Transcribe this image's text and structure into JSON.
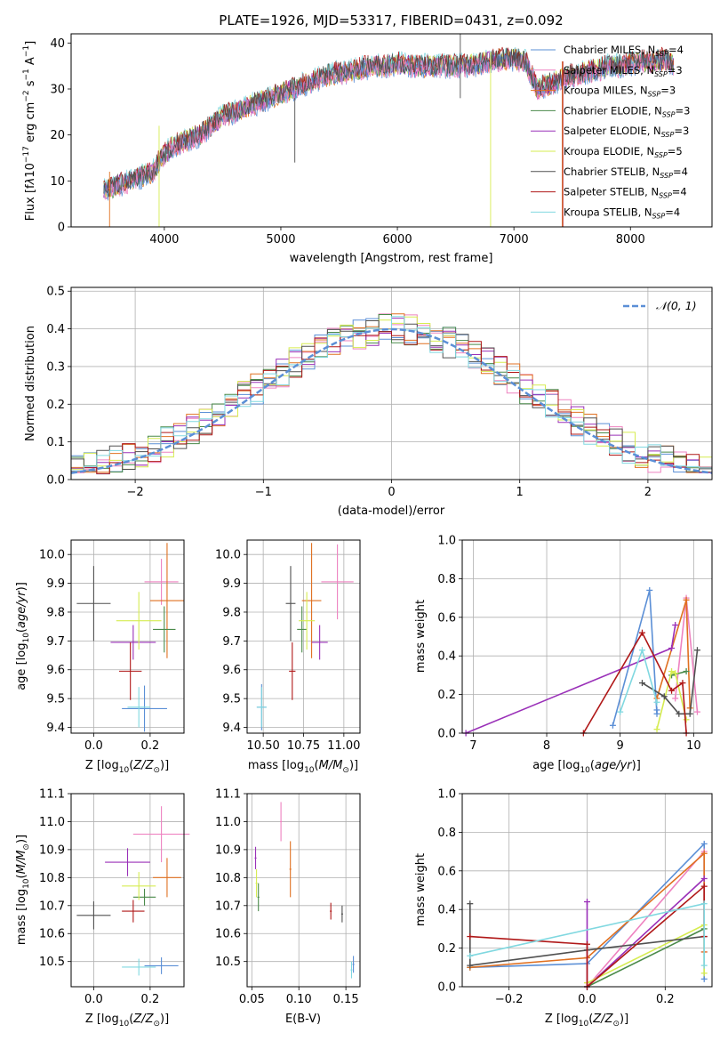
{
  "title": "PLATE=1926, MJD=53317, FIBERID=0431, z=0.092",
  "legend_models": [
    {
      "name": "Chabrier MILES, N_SSP=4",
      "label": "Chabrier MILES, N",
      "sub": "SSP",
      "suffix": "=4",
      "color": "#5b8fd6"
    },
    {
      "name": "Salpeter MILES, N_SSP=3",
      "label": "Salpeter MILES, N",
      "sub": "SSP",
      "suffix": "=3",
      "color": "#ee82c0"
    },
    {
      "name": "Kroupa MILES, N_SSP=3",
      "label": "Kroupa MILES, N",
      "sub": "SSP",
      "suffix": "=3",
      "color": "#e07020"
    },
    {
      "name": "Chabrier ELODIE, N_SSP=3",
      "label": "Chabrier ELODIE, N",
      "sub": "SSP",
      "suffix": "=3",
      "color": "#4a8a4a"
    },
    {
      "name": "Salpeter ELODIE, N_SSP=3",
      "label": "Salpeter ELODIE, N",
      "sub": "SSP",
      "suffix": "=3",
      "color": "#9a30b8"
    },
    {
      "name": "Kroupa ELODIE, N_SSP=5",
      "label": "Kroupa ELODIE, N",
      "sub": "SSP",
      "suffix": "=5",
      "color": "#d6ec50"
    },
    {
      "name": "Chabrier STELIB, N_SSP=4",
      "label": "Chabrier STELIB, N",
      "sub": "SSP",
      "suffix": "=4",
      "color": "#505050"
    },
    {
      "name": "Salpeter STELIB, N_SSP=4",
      "label": "Salpeter STELIB, N",
      "sub": "SSP",
      "suffix": "=4",
      "color": "#b01818"
    },
    {
      "name": "Kroupa STELIB, N_SSP=4",
      "label": "Kroupa STELIB, N",
      "sub": "SSP",
      "suffix": "=4",
      "color": "#80d8e0"
    }
  ],
  "chart_data": [
    {
      "id": "spectrum",
      "type": "line",
      "xlabel": "wavelength [Angstrom, rest frame]",
      "ylabel": "Flux [f_λ 10^-17 erg cm^-2 s^-1 A^-1]",
      "xlim": [
        3200,
        8700
      ],
      "ylim": [
        0,
        42
      ],
      "xticks": [
        4000,
        5000,
        6000,
        7000,
        8000
      ],
      "yticks": [
        0,
        10,
        20,
        30,
        40
      ],
      "grid": false,
      "legend_position": "right",
      "continuum": {
        "x": [
          3480,
          3600,
          3700,
          3800,
          3900,
          4000,
          4100,
          4200,
          4300,
          4400,
          4500,
          4600,
          4700,
          4800,
          4900,
          5000,
          5100,
          5200,
          5300,
          5400,
          5500,
          5600,
          5700,
          5800,
          5900,
          6000,
          6100,
          6200,
          6300,
          6400,
          6500,
          6600,
          6700,
          6800,
          6900,
          7000,
          7100,
          7200,
          7300,
          7400,
          7500,
          7600,
          7700,
          7800,
          7900,
          8000,
          8100,
          8200,
          8300,
          8370
        ],
        "y": [
          8,
          9,
          10,
          11,
          12,
          16,
          18,
          19,
          20,
          22,
          24,
          25,
          26,
          27,
          28,
          29,
          30,
          31,
          32,
          33,
          33.5,
          34,
          34.5,
          35,
          35,
          35.5,
          35.2,
          35,
          35,
          35,
          35,
          35.2,
          35.5,
          36,
          36.5,
          36.5,
          36,
          30,
          31,
          32,
          33,
          33.5,
          34,
          35,
          35,
          35.5,
          36,
          36,
          36.5,
          35.5
        ]
      }
    },
    {
      "id": "residual-histogram",
      "type": "histogram",
      "xlabel": "(data-model)/error",
      "ylabel": "Normed distribution",
      "xlim": [
        -2.5,
        2.5
      ],
      "ylim": [
        0,
        0.51
      ],
      "xticks": [
        -2,
        -1,
        0,
        1,
        2
      ],
      "yticks": [
        0.0,
        0.1,
        0.2,
        0.3,
        0.4,
        0.5
      ],
      "grid": true,
      "legend_position": "upper right",
      "reference": {
        "name": "𝒩(0, 1)",
        "mean": 0,
        "sigma": 1
      }
    },
    {
      "id": "age-vs-Z",
      "type": "scatter",
      "xlabel": "Z [log10(Z/Z⊙)]",
      "ylabel": "age [log10(age/yr)]",
      "xlim": [
        -0.08,
        0.32
      ],
      "ylim": [
        9.38,
        10.05
      ],
      "xticks": [
        0.0,
        0.2
      ],
      "yticks": [
        9.4,
        9.5,
        9.6,
        9.7,
        9.8,
        9.9,
        10.0
      ],
      "grid": true,
      "points": [
        {
          "model": 0,
          "x": 0.18,
          "y": 9.465,
          "xerr": 0.08,
          "yerr": 0.08
        },
        {
          "model": 1,
          "x": 0.24,
          "y": 9.905,
          "xerr": 0.06,
          "yerr": 0.08
        },
        {
          "model": 2,
          "x": 0.26,
          "y": 9.84,
          "xerr": 0.06,
          "yerr": 0.2
        },
        {
          "model": 3,
          "x": 0.25,
          "y": 9.74,
          "xerr": 0.04,
          "yerr": 0.08
        },
        {
          "model": 4,
          "x": 0.14,
          "y": 9.695,
          "xerr": 0.08,
          "yerr": 0.06
        },
        {
          "model": 5,
          "x": 0.16,
          "y": 9.77,
          "xerr": 0.08,
          "yerr": 0.1
        },
        {
          "model": 6,
          "x": 0.0,
          "y": 9.83,
          "xerr": 0.06,
          "yerr": 0.13
        },
        {
          "model": 7,
          "x": 0.13,
          "y": 9.595,
          "xerr": 0.04,
          "yerr": 0.1
        },
        {
          "model": 8,
          "x": 0.16,
          "y": 9.47,
          "xerr": 0.04,
          "yerr": 0.07
        }
      ]
    },
    {
      "id": "age-vs-mass",
      "type": "scatter",
      "xlabel": "mass [log10(M/M⊙)]",
      "ylabel": "",
      "xlim": [
        10.4,
        11.1
      ],
      "ylim": [
        9.38,
        10.05
      ],
      "xticks": [
        10.5,
        10.75,
        11.0
      ],
      "yticks": [
        9.4,
        9.5,
        9.6,
        9.7,
        9.8,
        9.9,
        10.0
      ],
      "grid": true,
      "points": [
        {
          "model": 0,
          "x": 10.49,
          "y": 9.47,
          "xerr": 0.03,
          "yerr": 0.08
        },
        {
          "model": 1,
          "x": 10.96,
          "y": 9.905,
          "xerr": 0.1,
          "yerr": 0.13
        },
        {
          "model": 2,
          "x": 10.8,
          "y": 9.84,
          "xerr": 0.06,
          "yerr": 0.2
        },
        {
          "model": 3,
          "x": 10.74,
          "y": 9.74,
          "xerr": 0.03,
          "yerr": 0.08
        },
        {
          "model": 4,
          "x": 10.85,
          "y": 9.695,
          "xerr": 0.05,
          "yerr": 0.06
        },
        {
          "model": 5,
          "x": 10.77,
          "y": 9.77,
          "xerr": 0.05,
          "yerr": 0.1
        },
        {
          "model": 6,
          "x": 10.67,
          "y": 9.83,
          "xerr": 0.03,
          "yerr": 0.13
        },
        {
          "model": 7,
          "x": 10.68,
          "y": 9.595,
          "xerr": 0.02,
          "yerr": 0.1
        },
        {
          "model": 8,
          "x": 10.49,
          "y": 9.47,
          "xerr": 0.03,
          "yerr": 0.07
        }
      ]
    },
    {
      "id": "weight-vs-age",
      "type": "line",
      "xlabel": "age [log10(age/yr)]",
      "ylabel": "mass weight",
      "xlim": [
        6.85,
        10.25
      ],
      "ylim": [
        0,
        1
      ],
      "xticks": [
        7,
        8,
        9,
        10
      ],
      "yticks": [
        0.0,
        0.2,
        0.4,
        0.6,
        0.8,
        1.0
      ],
      "grid": true,
      "series": [
        {
          "model": 0,
          "x": [
            8.9,
            9.4,
            9.5,
            9.5
          ],
          "y": [
            0.04,
            0.74,
            0.1,
            0.12
          ]
        },
        {
          "model": 1,
          "x": [
            9.75,
            9.9,
            10.05
          ],
          "y": [
            0.18,
            0.7,
            0.11
          ]
        },
        {
          "model": 2,
          "x": [
            9.5,
            9.9,
            9.95
          ],
          "y": [
            0.18,
            0.69,
            0.13
          ]
        },
        {
          "model": 3,
          "x": [
            9.7,
            9.9
          ],
          "y": [
            0.3,
            0.32
          ]
        },
        {
          "model": 4,
          "x": [
            6.9,
            9.7,
            9.75
          ],
          "y": [
            0.0,
            0.44,
            0.56
          ]
        },
        {
          "model": 5,
          "x": [
            9.5,
            9.7,
            9.75,
            9.9
          ],
          "y": [
            0.02,
            0.32,
            0.31,
            0.07
          ]
        },
        {
          "model": 6,
          "x": [
            9.3,
            9.6,
            9.8,
            9.95,
            10.05
          ],
          "y": [
            0.26,
            0.19,
            0.1,
            0.1,
            0.43
          ]
        },
        {
          "model": 7,
          "x": [
            8.5,
            9.3,
            9.7,
            9.85,
            9.9
          ],
          "y": [
            0.0,
            0.52,
            0.22,
            0.26,
            0.0
          ]
        },
        {
          "model": 8,
          "x": [
            9.0,
            9.3,
            9.5
          ],
          "y": [
            0.11,
            0.43,
            0.16
          ]
        }
      ]
    },
    {
      "id": "mass-vs-Z",
      "type": "scatter",
      "xlabel": "Z [log10(Z/Z⊙)]",
      "ylabel": "mass [log10(M/M⊙)]",
      "xlim": [
        -0.08,
        0.32
      ],
      "ylim": [
        10.41,
        11.1
      ],
      "xticks": [
        0.0,
        0.2
      ],
      "yticks": [
        10.5,
        10.6,
        10.7,
        10.8,
        10.9,
        11.0,
        11.1
      ],
      "grid": true,
      "points": [
        {
          "model": 0,
          "x": 0.24,
          "y": 10.485,
          "xerr": 0.06,
          "yerr": 0.03
        },
        {
          "model": 1,
          "x": 0.24,
          "y": 10.955,
          "xerr": 0.1,
          "yerr": 0.1
        },
        {
          "model": 2,
          "x": 0.26,
          "y": 10.8,
          "xerr": 0.05,
          "yerr": 0.07
        },
        {
          "model": 3,
          "x": 0.18,
          "y": 10.73,
          "xerr": 0.04,
          "yerr": 0.03
        },
        {
          "model": 4,
          "x": 0.12,
          "y": 10.855,
          "xerr": 0.08,
          "yerr": 0.05
        },
        {
          "model": 5,
          "x": 0.16,
          "y": 10.77,
          "xerr": 0.06,
          "yerr": 0.05
        },
        {
          "model": 6,
          "x": 0.0,
          "y": 10.665,
          "xerr": 0.06,
          "yerr": 0.05
        },
        {
          "model": 7,
          "x": 0.14,
          "y": 10.68,
          "xerr": 0.04,
          "yerr": 0.04
        },
        {
          "model": 8,
          "x": 0.16,
          "y": 10.48,
          "xerr": 0.06,
          "yerr": 0.03
        }
      ]
    },
    {
      "id": "mass-vs-EBV",
      "type": "scatter",
      "xlabel": "E(B-V)",
      "ylabel": "",
      "xlim": [
        0.045,
        0.165
      ],
      "ylim": [
        10.41,
        11.1
      ],
      "xticks": [
        0.05,
        0.1,
        0.15
      ],
      "yticks": [
        10.5,
        10.6,
        10.7,
        10.8,
        10.9,
        11.0,
        11.1
      ],
      "grid": true,
      "points": [
        {
          "model": 0,
          "x": 0.158,
          "y": 10.49,
          "xerr": 0.001,
          "yerr": 0.03
        },
        {
          "model": 1,
          "x": 0.081,
          "y": 11.0,
          "xerr": 0.001,
          "yerr": 0.07
        },
        {
          "model": 2,
          "x": 0.091,
          "y": 10.83,
          "xerr": 0.001,
          "yerr": 0.1
        },
        {
          "model": 3,
          "x": 0.057,
          "y": 10.73,
          "xerr": 0.001,
          "yerr": 0.05
        },
        {
          "model": 4,
          "x": 0.054,
          "y": 10.87,
          "xerr": 0.001,
          "yerr": 0.04
        },
        {
          "model": 5,
          "x": 0.055,
          "y": 10.78,
          "xerr": 0.001,
          "yerr": 0.05
        },
        {
          "model": 6,
          "x": 0.146,
          "y": 10.67,
          "xerr": 0.001,
          "yerr": 0.03
        },
        {
          "model": 7,
          "x": 0.134,
          "y": 10.68,
          "xerr": 0.001,
          "yerr": 0.03
        },
        {
          "model": 8,
          "x": 0.156,
          "y": 10.47,
          "xerr": 0.001,
          "yerr": 0.03
        }
      ]
    },
    {
      "id": "weight-vs-Z",
      "type": "line",
      "xlabel": "Z [log10(Z/Z⊙)]",
      "ylabel": "mass weight",
      "xlim": [
        -0.32,
        0.32
      ],
      "ylim": [
        0,
        1
      ],
      "xticks": [
        -0.2,
        0.0,
        0.2
      ],
      "yticks": [
        0.0,
        0.2,
        0.4,
        0.6,
        0.8,
        1.0
      ],
      "grid": true,
      "series": [
        {
          "model": 0,
          "x": [
            -0.3,
            0.0,
            0.3,
            0.3
          ],
          "y": [
            0.1,
            0.12,
            0.74,
            0.04
          ]
        },
        {
          "model": 1,
          "x": [
            0.0,
            0.3,
            0.3
          ],
          "y": [
            0.0,
            0.7,
            0.18
          ]
        },
        {
          "model": 2,
          "x": [
            -0.3,
            0.0,
            0.3,
            0.3
          ],
          "y": [
            0.1,
            0.15,
            0.69,
            0.18
          ]
        },
        {
          "model": 3,
          "x": [
            0.0,
            0.3
          ],
          "y": [
            0.0,
            0.3
          ]
        },
        {
          "model": 4,
          "x": [
            0.0,
            0.0,
            0.3
          ],
          "y": [
            0.44,
            0.0,
            0.56
          ]
        },
        {
          "model": 5,
          "x": [
            0.0,
            0.3,
            0.3
          ],
          "y": [
            0.02,
            0.32,
            0.07
          ]
        },
        {
          "model": 6,
          "x": [
            -0.3,
            -0.3,
            0.0,
            0.3
          ],
          "y": [
            0.43,
            0.11,
            0.19,
            0.26
          ]
        },
        {
          "model": 7,
          "x": [
            -0.3,
            0.0,
            0.0,
            0.3,
            0.3
          ],
          "y": [
            0.26,
            0.22,
            0.0,
            0.52,
            0.26
          ]
        },
        {
          "model": 8,
          "x": [
            -0.3,
            0.3,
            0.3
          ],
          "y": [
            0.16,
            0.43,
            0.11
          ]
        }
      ]
    }
  ]
}
